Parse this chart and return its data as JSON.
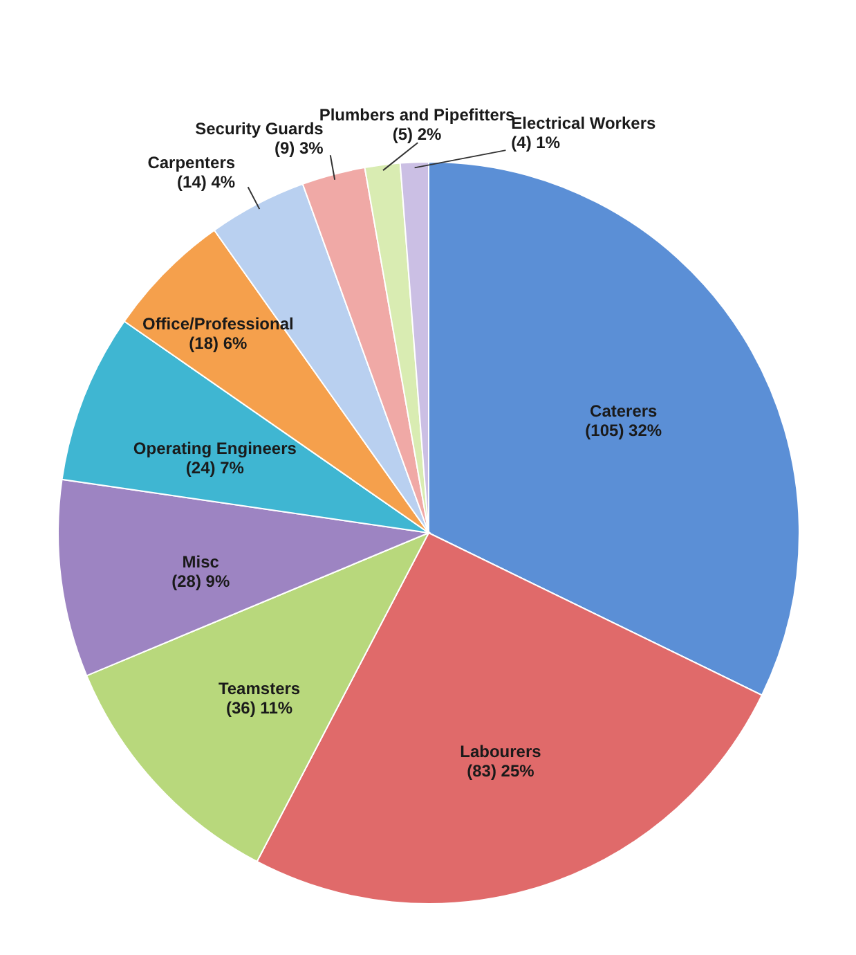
{
  "chart_data": {
    "type": "pie",
    "categories": [
      "Caterers",
      "Labourers",
      "Teamsters",
      "Misc",
      "Operating Engineers",
      "Office/Professional",
      "Carpenters",
      "Security Guards",
      "Plumbers and Pipefitters",
      "Electrical Workers"
    ],
    "values": [
      105,
      83,
      36,
      28,
      24,
      18,
      14,
      9,
      5,
      4
    ],
    "value_labels": [
      "(105) 32%",
      "(83) 25%",
      "(36) 11%",
      "(28) 9%",
      "(24) 7%",
      "(18) 6%",
      "(14) 4%",
      "(9) 3%",
      "(5) 2%",
      "(4) 1%"
    ],
    "colors": [
      "#5b8fd6",
      "#e06a6a",
      "#b8d87c",
      "#9d84c2",
      "#3fb6d2",
      "#f5a04c",
      "#b9d0f0",
      "#f0a9a6",
      "#d9ecb2",
      "#cbbfe4"
    ]
  }
}
